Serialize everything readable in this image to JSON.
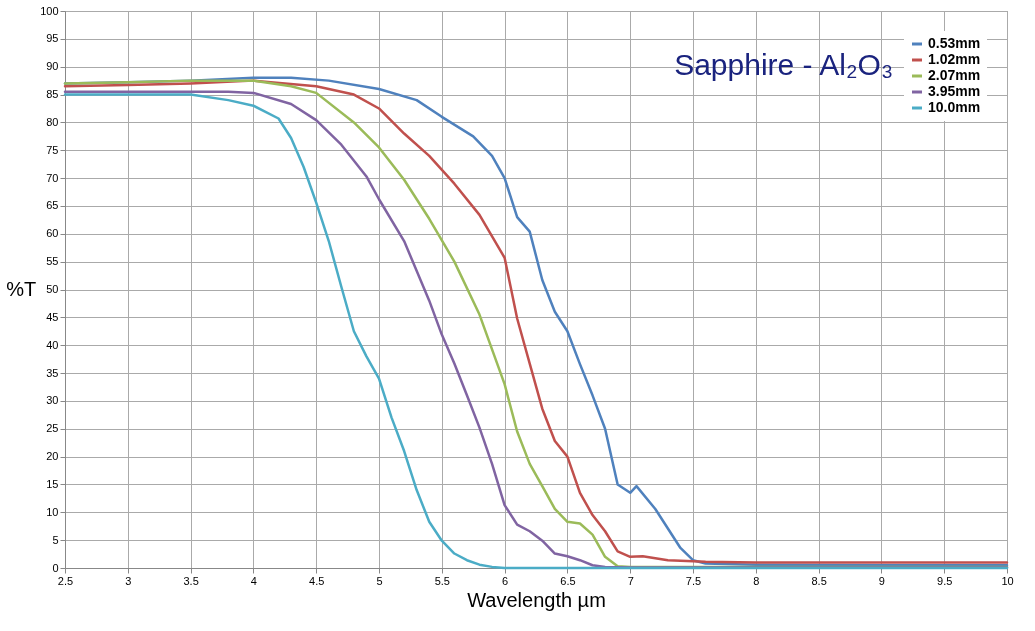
{
  "chart_data": {
    "type": "line",
    "title": "Sapphire - Al₂O₃",
    "xlabel": "Wavelength µm",
    "ylabel": "%T",
    "xlim": [
      2.5,
      10
    ],
    "ylim": [
      0,
      100
    ],
    "xticks": [
      2.5,
      3,
      3.5,
      4,
      4.5,
      5,
      5.5,
      6,
      6.5,
      7,
      7.5,
      8,
      8.5,
      9,
      9.5,
      10
    ],
    "yticks": [
      0,
      5,
      10,
      15,
      20,
      25,
      30,
      35,
      40,
      45,
      50,
      55,
      60,
      65,
      70,
      75,
      80,
      85,
      90,
      95,
      100
    ],
    "grid": true,
    "legend": "top right",
    "series": [
      {
        "name": "0.53mm",
        "color": "#4f81bd",
        "x": [
          2.5,
          3,
          3.5,
          4,
          4.3,
          4.6,
          5,
          5.3,
          5.5,
          5.75,
          5.9,
          6,
          6.1,
          6.2,
          6.3,
          6.4,
          6.5,
          6.6,
          6.7,
          6.8,
          6.9,
          7,
          7.05,
          7.2,
          7.3,
          7.4,
          7.5,
          7.6,
          8,
          9,
          10
        ],
        "values": [
          87,
          87.2,
          87.5,
          88,
          88,
          87.5,
          86,
          84,
          81,
          77.5,
          74,
          70,
          63,
          60.4,
          51.7,
          46,
          42.5,
          36.6,
          31,
          25,
          15,
          13.5,
          14.7,
          10.6,
          7.1,
          3.6,
          1.4,
          0.8,
          0.6,
          0.5,
          0.5
        ]
      },
      {
        "name": "1.02mm",
        "color": "#c0504d",
        "x": [
          2.5,
          3,
          3.5,
          4,
          4.5,
          4.8,
          5,
          5.2,
          5.4,
          5.6,
          5.8,
          6,
          6.1,
          6.2,
          6.3,
          6.4,
          6.5,
          6.6,
          6.7,
          6.8,
          6.9,
          7,
          7.1,
          7.3,
          7.6,
          8,
          9,
          10
        ],
        "values": [
          86.5,
          86.7,
          87,
          87.5,
          86.5,
          85,
          82.5,
          78,
          74,
          69,
          63.4,
          55.7,
          44.8,
          36.7,
          28.6,
          22.8,
          20,
          13.5,
          9.5,
          6.6,
          3,
          2,
          2.1,
          1.4,
          1.1,
          1,
          1,
          1
        ]
      },
      {
        "name": "2.07mm",
        "color": "#9bbb59",
        "x": [
          2.5,
          3,
          3.5,
          4,
          4.3,
          4.5,
          4.8,
          5,
          5.2,
          5.4,
          5.6,
          5.8,
          6,
          6.1,
          6.2,
          6.3,
          6.4,
          6.5,
          6.6,
          6.7,
          6.8,
          6.9,
          7,
          8,
          10
        ],
        "values": [
          87,
          87.2,
          87.5,
          87.5,
          86.5,
          85.3,
          80,
          75.5,
          69.7,
          62.7,
          55,
          45.5,
          33,
          24.5,
          18.7,
          14.7,
          10.6,
          8.3,
          8,
          6,
          2,
          0.3,
          0.2,
          0.2,
          0.2
        ]
      },
      {
        "name": "3.95mm",
        "color": "#8064a2",
        "x": [
          2.5,
          3,
          3.5,
          3.8,
          4,
          4.3,
          4.5,
          4.7,
          4.9,
          5,
          5.2,
          5.4,
          5.5,
          5.6,
          5.7,
          5.8,
          5.9,
          6,
          6.1,
          6.2,
          6.3,
          6.4,
          6.5,
          6.6,
          6.7,
          6.8,
          7,
          8,
          10
        ],
        "values": [
          85.5,
          85.5,
          85.5,
          85.5,
          85.3,
          83.3,
          80.4,
          76,
          70.3,
          66.2,
          58.7,
          48,
          41.9,
          36.7,
          31,
          25.2,
          18.7,
          11.3,
          7.8,
          6.6,
          4.9,
          2.6,
          2.1,
          1.4,
          0.5,
          0.2,
          0.1,
          0.1,
          0.1
        ]
      },
      {
        "name": "10.0mm",
        "color": "#4bacc6",
        "x": [
          2.5,
          3,
          3.5,
          3.8,
          4,
          4.2,
          4.3,
          4.4,
          4.5,
          4.6,
          4.7,
          4.8,
          4.9,
          5,
          5.1,
          5.2,
          5.3,
          5.4,
          5.5,
          5.6,
          5.7,
          5.8,
          5.9,
          6,
          7,
          8,
          10
        ],
        "values": [
          85,
          85,
          85,
          84,
          83,
          80.7,
          77.2,
          72,
          65.6,
          58.7,
          50.5,
          42.5,
          38,
          34,
          27,
          21,
          14,
          8.3,
          4.9,
          2.6,
          1.4,
          0.6,
          0.2,
          0,
          0,
          0,
          0
        ]
      }
    ]
  }
}
